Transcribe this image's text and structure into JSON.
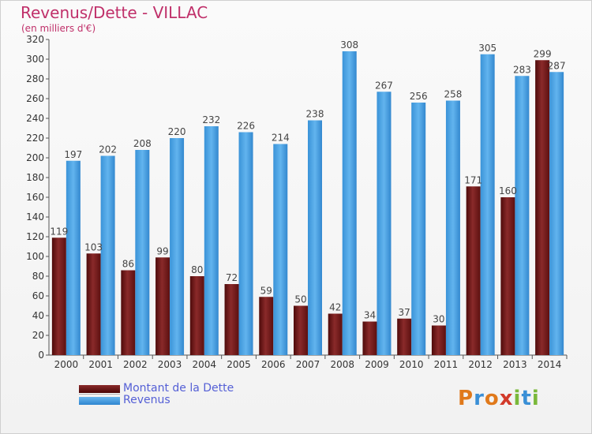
{
  "header": {
    "title": "Revenus/Dette - VILLAC",
    "subtitle": "(en milliers d'€)"
  },
  "chart_data": {
    "type": "bar",
    "title": "Revenus/Dette - VILLAC",
    "subtitle": "(en milliers d'€)",
    "xlabel": "",
    "ylabel": "",
    "ylim": [
      0,
      320
    ],
    "ytick_step": 20,
    "grid": false,
    "categories": [
      "2000",
      "2001",
      "2002",
      "2003",
      "2004",
      "2005",
      "2006",
      "2007",
      "2008",
      "2009",
      "2010",
      "2011",
      "2012",
      "2013",
      "2014"
    ],
    "series": [
      {
        "name": "Montant de la Dette",
        "color": "#7a1c1c",
        "values": [
          119,
          103,
          86,
          99,
          80,
          72,
          59,
          50,
          42,
          34,
          37,
          30,
          171,
          160,
          299
        ]
      },
      {
        "name": "Revenus",
        "color": "#4ea7e8",
        "values": [
          197,
          202,
          208,
          220,
          232,
          226,
          214,
          238,
          308,
          267,
          256,
          258,
          305,
          283,
          287
        ]
      }
    ],
    "legend_placement": "bottom-left"
  },
  "legend": {
    "items": [
      {
        "label": "Montant de la Dette"
      },
      {
        "label": "Revenus"
      }
    ]
  },
  "logo": {
    "text": "Proxiti",
    "colors": [
      "#e0791b",
      "#3a8fd6",
      "#e0791b",
      "#d23a2a",
      "#7ab83a",
      "#3a8fd6",
      "#7ab83a"
    ]
  }
}
